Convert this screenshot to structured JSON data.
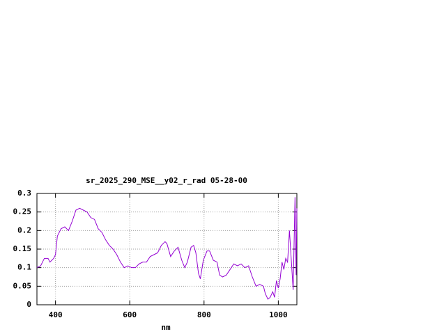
{
  "chart_data": {
    "type": "line",
    "title": "sr_2025_290_MSE__y02_r_rad 05-28-00",
    "x_label": "nm",
    "xlim": [
      350,
      1050
    ],
    "ylim": [
      0,
      0.3
    ],
    "xticks": [
      400,
      600,
      800,
      1000
    ],
    "yticks": [
      0,
      0.05,
      0.1,
      0.15,
      0.2,
      0.25,
      0.3
    ],
    "grid": true,
    "series": [
      {
        "color": "#9400d3",
        "x": [
          350,
          360,
          370,
          380,
          385,
          395,
          400,
          405,
          415,
          425,
          435,
          445,
          455,
          465,
          475,
          485,
          495,
          505,
          515,
          525,
          535,
          545,
          555,
          565,
          575,
          585,
          595,
          605,
          615,
          625,
          635,
          645,
          655,
          665,
          675,
          685,
          695,
          700,
          710,
          720,
          730,
          740,
          748,
          755,
          765,
          772,
          778,
          785,
          790,
          798,
          808,
          815,
          825,
          835,
          842,
          850,
          860,
          870,
          880,
          890,
          900,
          910,
          920,
          930,
          940,
          950,
          960,
          965,
          972,
          978,
          985,
          990,
          995,
          1000,
          1005,
          1010,
          1015,
          1020,
          1025,
          1030,
          1035,
          1040,
          1045,
          1048,
          1050
        ],
        "values": [
          0.1,
          0.105,
          0.125,
          0.125,
          0.115,
          0.125,
          0.135,
          0.185,
          0.205,
          0.21,
          0.2,
          0.225,
          0.255,
          0.26,
          0.255,
          0.25,
          0.235,
          0.23,
          0.205,
          0.195,
          0.175,
          0.16,
          0.15,
          0.135,
          0.115,
          0.1,
          0.105,
          0.1,
          0.1,
          0.11,
          0.115,
          0.115,
          0.13,
          0.135,
          0.14,
          0.16,
          0.17,
          0.165,
          0.13,
          0.145,
          0.155,
          0.12,
          0.1,
          0.115,
          0.155,
          0.16,
          0.14,
          0.085,
          0.07,
          0.12,
          0.145,
          0.145,
          0.12,
          0.115,
          0.08,
          0.075,
          0.08,
          0.095,
          0.11,
          0.105,
          0.11,
          0.1,
          0.105,
          0.075,
          0.05,
          0.055,
          0.05,
          0.03,
          0.015,
          0.02,
          0.035,
          0.02,
          0.065,
          0.045,
          0.07,
          0.115,
          0.095,
          0.125,
          0.115,
          0.2,
          0.12,
          0.04,
          0.29,
          0.08,
          0.26
        ]
      }
    ]
  }
}
